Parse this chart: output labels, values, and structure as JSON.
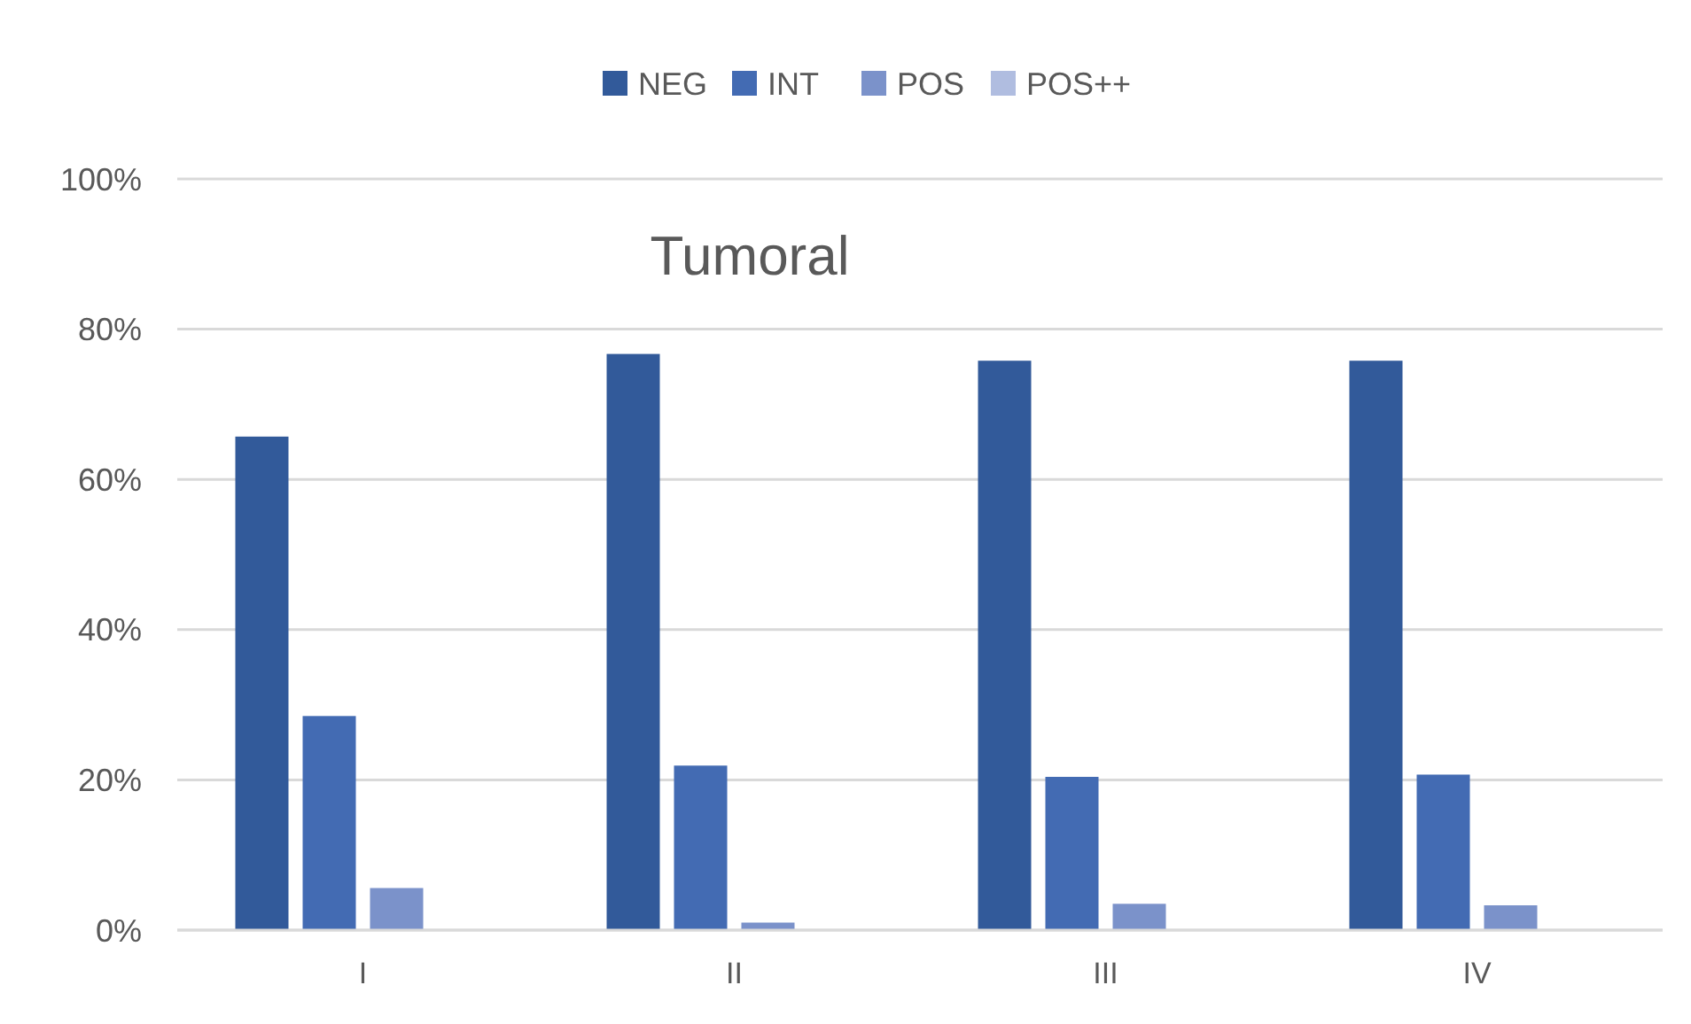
{
  "chart_data": {
    "type": "bar",
    "title": "Tumoral",
    "categories": [
      "I",
      "II",
      "III",
      "IV"
    ],
    "series": [
      {
        "name": "NEG",
        "color": "#325a9a",
        "values": [
          65.7,
          76.7,
          75.8,
          75.8
        ]
      },
      {
        "name": "INT",
        "color": "#436bb3",
        "values": [
          28.5,
          21.9,
          20.4,
          20.7
        ]
      },
      {
        "name": "POS",
        "color": "#7b92ca",
        "values": [
          5.6,
          1.0,
          3.5,
          3.3
        ]
      },
      {
        "name": "POS++",
        "color": "#b0bde0",
        "values": [
          0,
          0,
          0,
          0
        ]
      }
    ],
    "ylim": [
      0,
      100
    ],
    "yticks": [
      {
        "value": 0,
        "label": "0%"
      },
      {
        "value": 20,
        "label": "20%"
      },
      {
        "value": 40,
        "label": "40%"
      },
      {
        "value": 60,
        "label": "60%"
      },
      {
        "value": 80,
        "label": "80%"
      },
      {
        "value": 100,
        "label": "100%"
      }
    ],
    "grid": "y",
    "legend": "top"
  }
}
